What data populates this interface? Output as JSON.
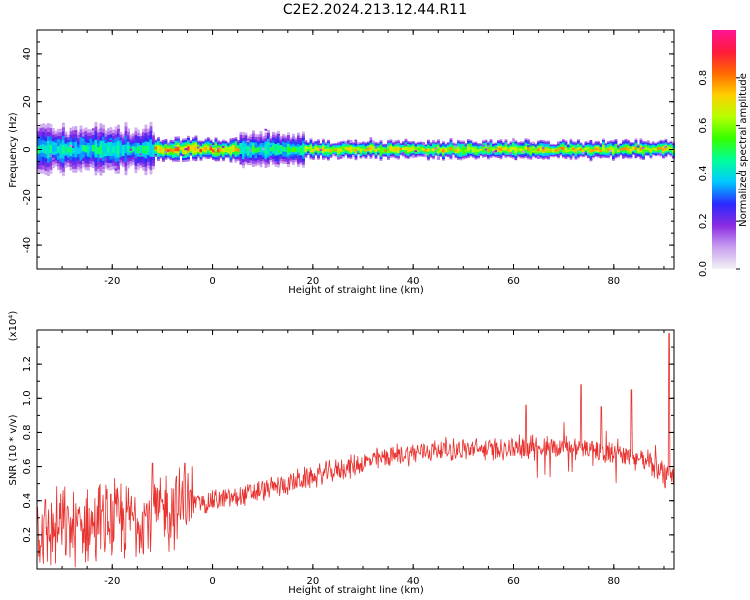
{
  "title": "C2E2.2024.213.12.44.R11",
  "chart_data": [
    {
      "type": "heatmap",
      "xlabel": "Height of straight line (km)",
      "ylabel": "Frequency (Hz)",
      "xlim": [
        -35,
        92
      ],
      "ylim": [
        -50,
        50
      ],
      "xticks": [
        "-20",
        "0",
        "20",
        "40",
        "60",
        "80"
      ],
      "yticks": [
        "-40",
        "-20",
        "0",
        "20",
        "40"
      ],
      "colorbar": {
        "label": "Normalized spectral amplitude",
        "range": [
          0,
          1
        ],
        "ticks": [
          "0.0",
          "0.2",
          "0.4",
          "0.6",
          "0.8"
        ],
        "colors": [
          "#f2f2f2",
          "#c9a0f0",
          "#8a2be2",
          "#2a2aff",
          "#00c8ff",
          "#00ff9a",
          "#35ff00",
          "#b5ff00",
          "#ffd000",
          "#ff6a00",
          "#ff1a3c",
          "#ff1493"
        ]
      },
      "band": {
        "center_hz": 0,
        "segments": [
          {
            "x": [
              -35,
              -12
            ],
            "halfwidth_hz": 5,
            "peak": 0.55
          },
          {
            "x": [
              -12,
              5
            ],
            "halfwidth_hz": 2.5,
            "peak": 0.95
          },
          {
            "x": [
              5,
              18
            ],
            "halfwidth_hz": 3.5,
            "peak": 0.6
          },
          {
            "x": [
              18,
              92
            ],
            "halfwidth_hz": 2,
            "peak": 0.85
          }
        ]
      }
    },
    {
      "type": "line",
      "xlabel": "Height of straight line (km)",
      "ylabel": "SNR (10 * v/v)",
      "scale_label": "(x10⁴)",
      "xlim": [
        -35,
        92
      ],
      "ylim": [
        0,
        1.4
      ],
      "xticks": [
        "-20",
        "0",
        "20",
        "40",
        "60",
        "80"
      ],
      "yticks": [
        "0.2",
        "0.4",
        "0.6",
        "0.8",
        "1.0",
        "1.2"
      ],
      "color": "#e8322f",
      "trend_x": [
        -35,
        -25,
        -15,
        -5,
        5,
        15,
        25,
        35,
        45,
        55,
        65,
        75,
        85,
        92
      ],
      "trend_y": [
        0.22,
        0.25,
        0.3,
        0.38,
        0.42,
        0.5,
        0.58,
        0.66,
        0.7,
        0.7,
        0.72,
        0.7,
        0.65,
        0.55
      ],
      "peaks": [
        {
          "x": 62.5,
          "y": 0.96
        },
        {
          "x": 73.5,
          "y": 1.08
        },
        {
          "x": 77.5,
          "y": 0.95
        },
        {
          "x": 83.5,
          "y": 1.05
        },
        {
          "x": 91,
          "y": 1.38
        },
        {
          "x": -5.5,
          "y": 0.62
        },
        {
          "x": -12,
          "y": 0.62
        }
      ]
    }
  ]
}
